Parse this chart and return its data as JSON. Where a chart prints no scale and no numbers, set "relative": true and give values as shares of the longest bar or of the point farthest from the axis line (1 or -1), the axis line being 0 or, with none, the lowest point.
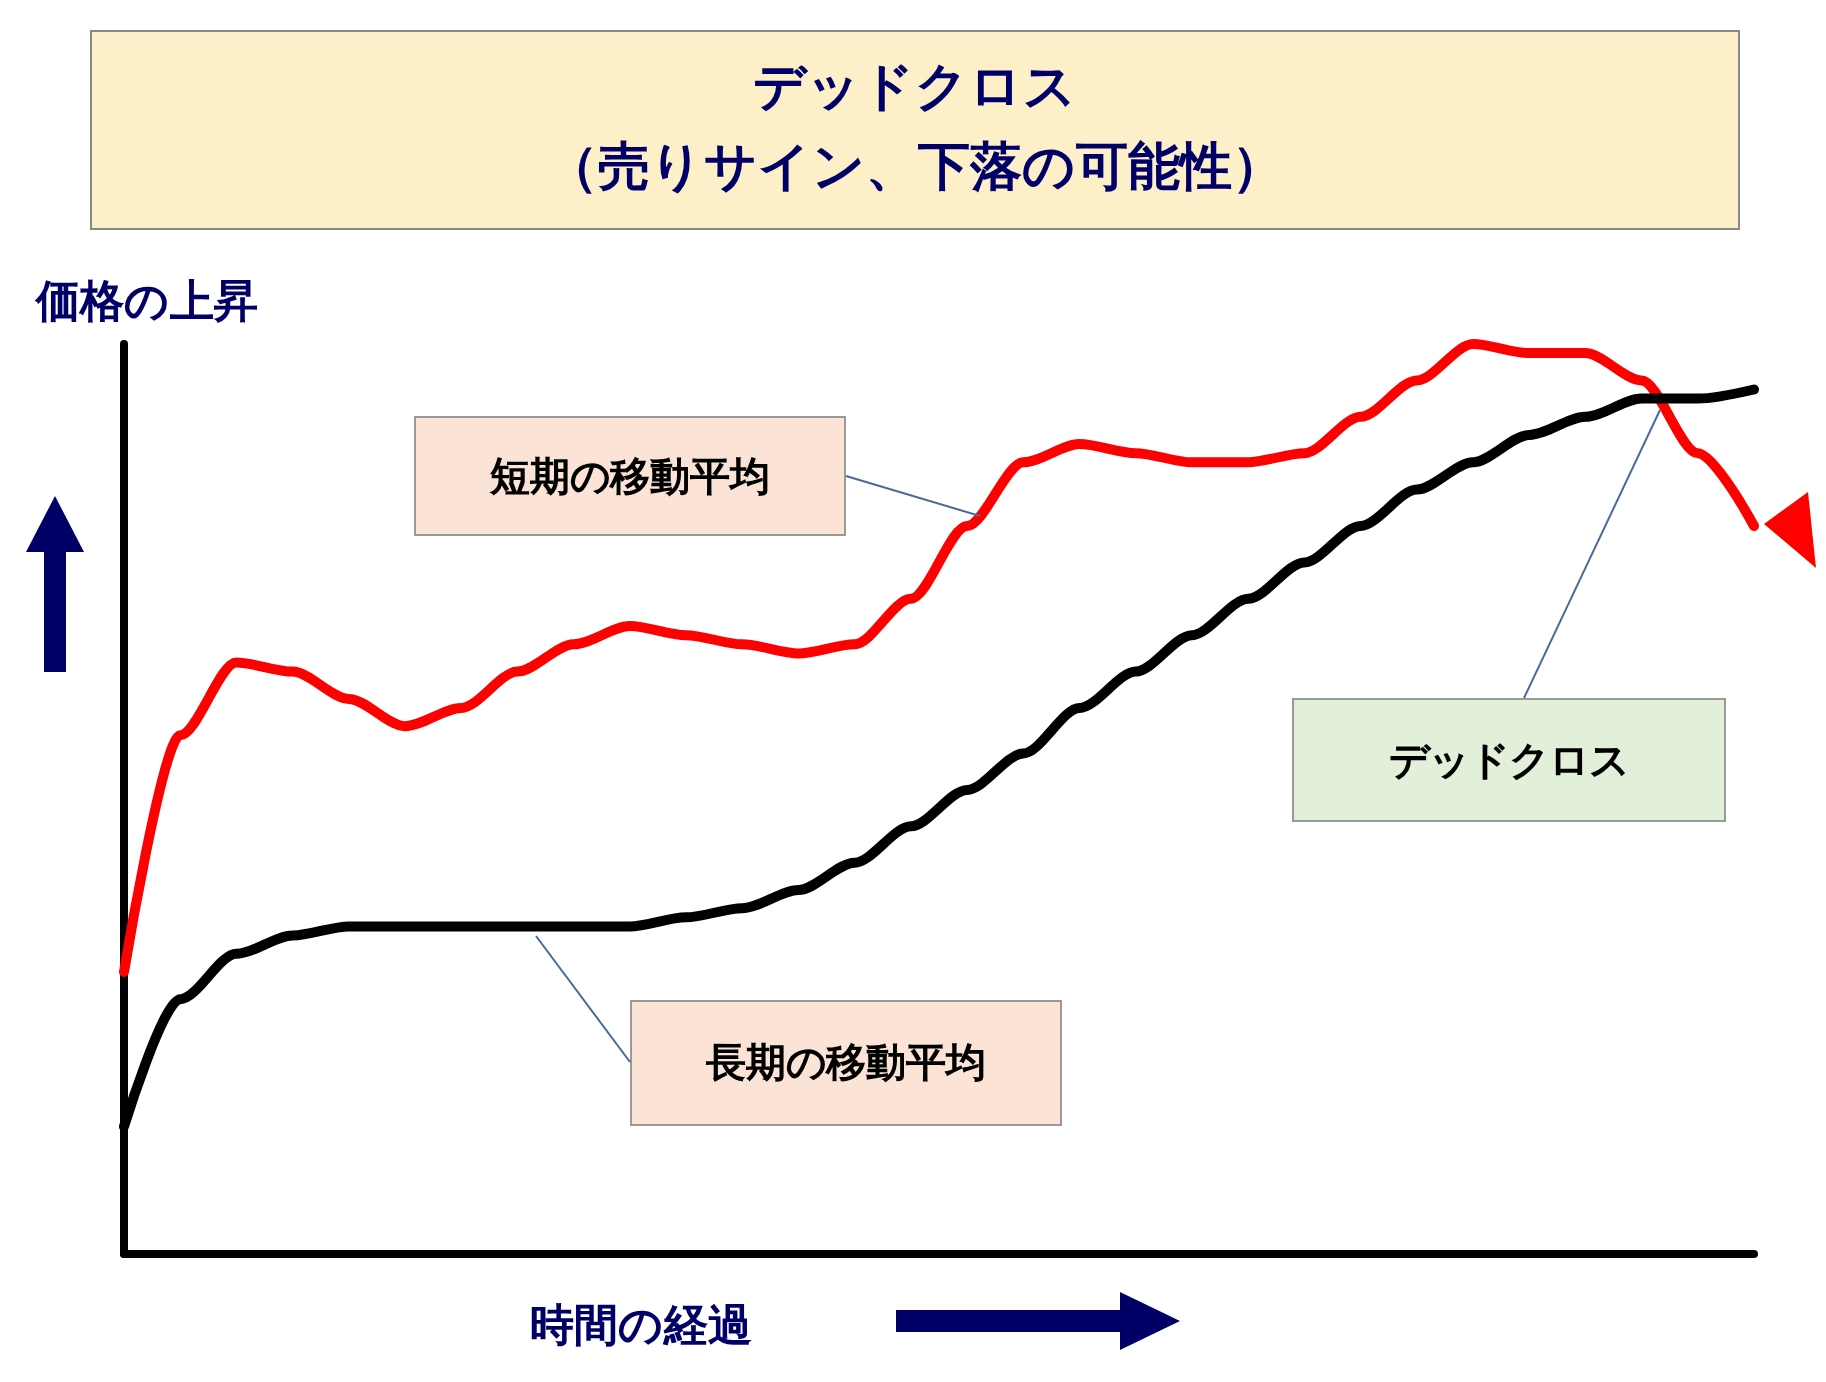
{
  "chart_data": {
    "type": "line",
    "title": "デッドクロス",
    "subtitle": "（売りサイン、下落の可能性）",
    "xlabel": "時間の経過",
    "ylabel": "価格の上昇",
    "annotations": [
      "短期の移動平均",
      "長期の移動平均",
      "デッドクロス"
    ],
    "categories": [
      null,
      null,
      null,
      null,
      null,
      null,
      null,
      null,
      null,
      null,
      null,
      null,
      null,
      null,
      null,
      null,
      null,
      null,
      null,
      null,
      null,
      null,
      null,
      null,
      null,
      null,
      null,
      null,
      null,
      null
    ],
    "relative": true,
    "marker": "none",
    "line_style": "solid",
    "series": [
      {
        "color": "#ff0000",
        "values": [
          0.31,
          0.57,
          0.65,
          0.64,
          0.61,
          0.58,
          0.6,
          0.64,
          0.67,
          0.69,
          0.68,
          0.67,
          0.66,
          0.67,
          0.72,
          0.8,
          0.87,
          0.89,
          0.88,
          0.87,
          0.87,
          0.88,
          0.92,
          0.96,
          1,
          0.99,
          0.99,
          0.96,
          0.88,
          0.8
        ]
      },
      {
        "color": "#000000",
        "values": [
          0.14,
          0.28,
          0.33,
          0.35,
          0.36,
          0.36,
          0.36,
          0.36,
          0.36,
          0.36,
          0.37,
          0.38,
          0.4,
          0.43,
          0.47,
          0.51,
          0.55,
          0.6,
          0.64,
          0.68,
          0.72,
          0.76,
          0.8,
          0.84,
          0.87,
          0.9,
          0.92,
          0.94,
          0.94,
          0.95
        ]
      }
    ]
  }
}
